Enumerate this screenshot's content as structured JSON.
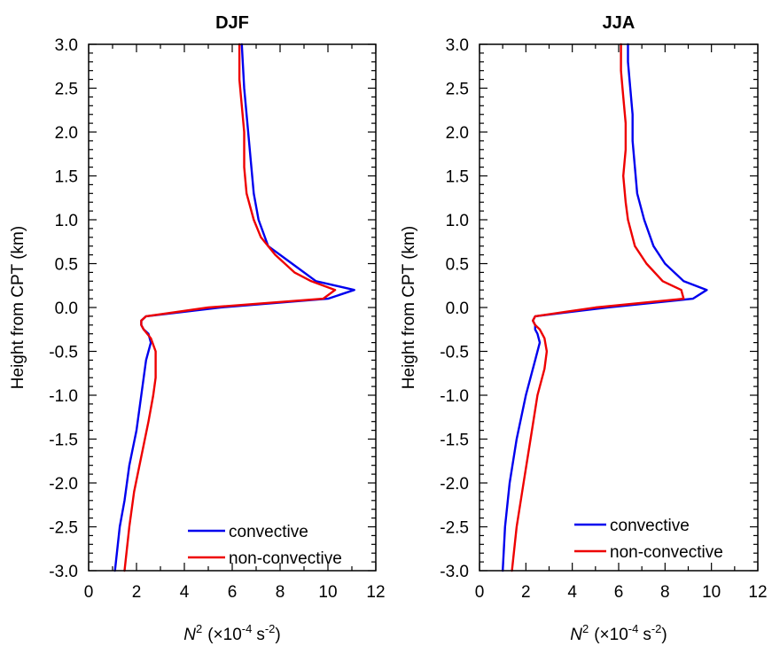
{
  "chart_data": [
    {
      "type": "line",
      "title": "DJF",
      "xlabel": "N",
      "xlabel_sup": "2",
      "xlabel_unit": "(×10",
      "xlabel_unit_exp": "-4",
      "xlabel_unit_s": "s",
      "xlabel_unit_s_exp": "-2",
      "xlabel_close": ")",
      "ylabel": "Height from CPT (km)",
      "xlim": [
        0,
        12
      ],
      "ylim": [
        -3.0,
        3.0
      ],
      "xticks": [
        "0",
        "2",
        "4",
        "6",
        "8",
        "10",
        "12"
      ],
      "yticks": [
        "-3.0",
        "-2.5",
        "-2.0",
        "-1.5",
        "-1.0",
        "-0.5",
        "0.0",
        "0.5",
        "1.0",
        "1.5",
        "2.0",
        "2.5",
        "3.0"
      ],
      "legend_position": "bottom-right",
      "series": [
        {
          "name": "convective",
          "color": "#0000ee",
          "points": [
            [
              1.1,
              -3.0
            ],
            [
              1.3,
              -2.5
            ],
            [
              1.5,
              -2.2
            ],
            [
              1.7,
              -1.8
            ],
            [
              2.0,
              -1.4
            ],
            [
              2.2,
              -1.0
            ],
            [
              2.4,
              -0.6
            ],
            [
              2.6,
              -0.4
            ],
            [
              2.5,
              -0.3
            ],
            [
              2.3,
              -0.25
            ],
            [
              2.2,
              -0.2
            ],
            [
              2.2,
              -0.15
            ],
            [
              2.4,
              -0.1
            ],
            [
              5.5,
              0.0
            ],
            [
              10.0,
              0.1
            ],
            [
              11.1,
              0.2
            ],
            [
              9.5,
              0.3
            ],
            [
              8.5,
              0.5
            ],
            [
              7.5,
              0.7
            ],
            [
              7.1,
              1.0
            ],
            [
              6.9,
              1.3
            ],
            [
              6.8,
              1.6
            ],
            [
              6.7,
              1.9
            ],
            [
              6.6,
              2.2
            ],
            [
              6.5,
              2.5
            ],
            [
              6.4,
              3.0
            ]
          ]
        },
        {
          "name": "non-convective",
          "color": "#ee0000",
          "points": [
            [
              1.5,
              -3.0
            ],
            [
              1.7,
              -2.5
            ],
            [
              1.9,
              -2.1
            ],
            [
              2.2,
              -1.7
            ],
            [
              2.5,
              -1.3
            ],
            [
              2.7,
              -1.0
            ],
            [
              2.8,
              -0.8
            ],
            [
              2.8,
              -0.5
            ],
            [
              2.6,
              -0.35
            ],
            [
              2.3,
              -0.25
            ],
            [
              2.2,
              -0.2
            ],
            [
              2.2,
              -0.15
            ],
            [
              2.4,
              -0.1
            ],
            [
              5.0,
              0.0
            ],
            [
              9.8,
              0.1
            ],
            [
              10.3,
              0.2
            ],
            [
              9.3,
              0.3
            ],
            [
              8.6,
              0.4
            ],
            [
              7.8,
              0.6
            ],
            [
              7.2,
              0.8
            ],
            [
              6.9,
              1.0
            ],
            [
              6.6,
              1.3
            ],
            [
              6.5,
              1.6
            ],
            [
              6.5,
              2.0
            ],
            [
              6.4,
              2.3
            ],
            [
              6.3,
              2.6
            ],
            [
              6.3,
              3.0
            ]
          ]
        }
      ]
    },
    {
      "type": "line",
      "title": "JJA",
      "xlabel": "N",
      "xlabel_sup": "2",
      "xlabel_unit": "(×10",
      "xlabel_unit_exp": "-4",
      "xlabel_unit_s": "s",
      "xlabel_unit_s_exp": "-2",
      "xlabel_close": ")",
      "ylabel": "Height from CPT (km)",
      "xlim": [
        0,
        12
      ],
      "ylim": [
        -3.0,
        3.0
      ],
      "xticks": [
        "0",
        "2",
        "4",
        "6",
        "8",
        "10",
        "12"
      ],
      "yticks": [
        "-3.0",
        "-2.5",
        "-2.0",
        "-1.5",
        "-1.0",
        "-0.5",
        "0.0",
        "0.5",
        "1.0",
        "1.5",
        "2.0",
        "2.5",
        "3.0"
      ],
      "legend_position": "bottom-right",
      "series": [
        {
          "name": "convective",
          "color": "#0000ee",
          "points": [
            [
              1.0,
              -3.0
            ],
            [
              1.1,
              -2.5
            ],
            [
              1.3,
              -2.0
            ],
            [
              1.6,
              -1.5
            ],
            [
              2.0,
              -1.0
            ],
            [
              2.4,
              -0.6
            ],
            [
              2.6,
              -0.4
            ],
            [
              2.5,
              -0.3
            ],
            [
              2.4,
              -0.25
            ],
            [
              2.4,
              -0.2
            ],
            [
              2.3,
              -0.15
            ],
            [
              2.4,
              -0.1
            ],
            [
              5.5,
              0.0
            ],
            [
              9.2,
              0.1
            ],
            [
              9.8,
              0.2
            ],
            [
              8.8,
              0.3
            ],
            [
              8.0,
              0.5
            ],
            [
              7.5,
              0.7
            ],
            [
              7.1,
              1.0
            ],
            [
              6.8,
              1.3
            ],
            [
              6.7,
              1.6
            ],
            [
              6.6,
              1.9
            ],
            [
              6.6,
              2.2
            ],
            [
              6.5,
              2.5
            ],
            [
              6.4,
              2.8
            ],
            [
              6.4,
              3.0
            ]
          ]
        },
        {
          "name": "non-convective",
          "color": "#ee0000",
          "points": [
            [
              1.4,
              -3.0
            ],
            [
              1.6,
              -2.5
            ],
            [
              1.9,
              -2.0
            ],
            [
              2.2,
              -1.5
            ],
            [
              2.5,
              -1.0
            ],
            [
              2.8,
              -0.7
            ],
            [
              2.9,
              -0.5
            ],
            [
              2.8,
              -0.35
            ],
            [
              2.6,
              -0.25
            ],
            [
              2.4,
              -0.2
            ],
            [
              2.3,
              -0.15
            ],
            [
              2.4,
              -0.1
            ],
            [
              5.0,
              0.0
            ],
            [
              8.8,
              0.1
            ],
            [
              8.7,
              0.2
            ],
            [
              7.9,
              0.3
            ],
            [
              7.2,
              0.5
            ],
            [
              6.7,
              0.7
            ],
            [
              6.4,
              1.0
            ],
            [
              6.3,
              1.2
            ],
            [
              6.2,
              1.5
            ],
            [
              6.3,
              1.8
            ],
            [
              6.3,
              2.1
            ],
            [
              6.2,
              2.4
            ],
            [
              6.1,
              2.7
            ],
            [
              6.1,
              3.0
            ]
          ]
        }
      ]
    }
  ]
}
